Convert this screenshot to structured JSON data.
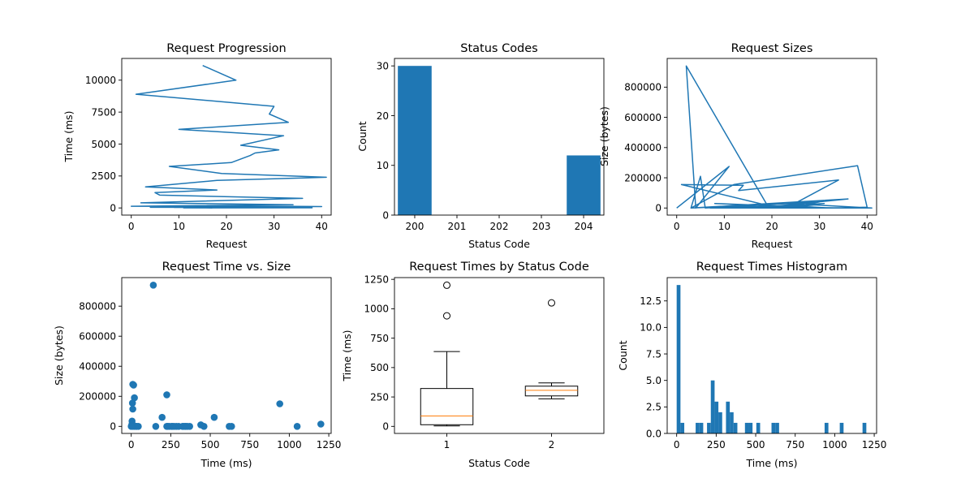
{
  "figure": {
    "accent_color": "#1f77b4",
    "median_color": "#ff7f0e"
  },
  "chart_data": [
    {
      "id": "progression",
      "type": "line",
      "title": "Request Progression",
      "xlabel": "Request",
      "ylabel": "Time (ms)",
      "xlim": [
        -2,
        42
      ],
      "ylim": [
        -560,
        11700
      ],
      "xticks": [
        0,
        10,
        20,
        30,
        40
      ],
      "yticks": [
        0,
        2500,
        5000,
        7500,
        10000
      ],
      "grid": false,
      "x": [
        15,
        22,
        1,
        30,
        29,
        33,
        10,
        32,
        23,
        31,
        26,
        25,
        21,
        8,
        19,
        41,
        18,
        3,
        18,
        5,
        6,
        36,
        2,
        34,
        0,
        34,
        40,
        16,
        37,
        12,
        28,
        4,
        20,
        35,
        9,
        31,
        14,
        24,
        27,
        38,
        11,
        17
      ],
      "y": [
        11150,
        10000,
        8900,
        7950,
        7350,
        6700,
        6150,
        5650,
        4900,
        4550,
        4300,
        4100,
        3550,
        3250,
        2700,
        2400,
        2150,
        1650,
        1400,
        1200,
        1000,
        750,
        400,
        250,
        130,
        120,
        110,
        90,
        80,
        70,
        60,
        50,
        45,
        40,
        35,
        30,
        25,
        20,
        15,
        10,
        5,
        0
      ]
    },
    {
      "id": "status_codes",
      "type": "bar",
      "title": "Status Codes",
      "xlabel": "Status Code",
      "ylabel": "Count",
      "categories": [
        "200",
        "204"
      ],
      "x": [
        200,
        204
      ],
      "values": [
        30,
        12
      ],
      "xlim": [
        199.52,
        204.48
      ],
      "ylim": [
        0,
        31.5
      ],
      "xticks": [
        200,
        201,
        202,
        203,
        204
      ],
      "xticklabels": [
        "200",
        "201",
        "202",
        "203",
        "204"
      ],
      "yticks": [
        0,
        10,
        20,
        30
      ],
      "grid": false
    },
    {
      "id": "request_sizes",
      "type": "line",
      "title": "Request Sizes",
      "xlabel": "Request",
      "ylabel": "Size (bytes)",
      "xlim": [
        -2,
        42
      ],
      "ylim": [
        -47000,
        990000
      ],
      "xticks": [
        0,
        10,
        20,
        30,
        40
      ],
      "yticks": [
        0,
        200000,
        400000,
        600000,
        800000
      ],
      "grid": false,
      "x": [
        0,
        11,
        4,
        2,
        19,
        3,
        5,
        6,
        30,
        23,
        34,
        13,
        14,
        1,
        20,
        36,
        3,
        12,
        38,
        40,
        33,
        8,
        26,
        7,
        41,
        29,
        22,
        16,
        31,
        21,
        25,
        18,
        27,
        24,
        32,
        28,
        17,
        35,
        15,
        10,
        9,
        37
      ],
      "y": [
        0,
        275000,
        0,
        940000,
        20000,
        0,
        210000,
        0,
        40000,
        0,
        185000,
        115000,
        150000,
        155000,
        10000,
        60000,
        0,
        155000,
        280000,
        5000,
        0,
        30000,
        5000,
        0,
        0,
        20000,
        0,
        5000,
        30000,
        0,
        10000,
        5000,
        0,
        15000,
        0,
        5000,
        0,
        0,
        10000,
        0,
        5000,
        0
      ]
    },
    {
      "id": "time_vs_size",
      "type": "scatter",
      "title": "Request Time vs. Size",
      "xlabel": "Time (ms)",
      "ylabel": "Size (bytes)",
      "xlim": [
        -60,
        1265
      ],
      "ylim": [
        -47000,
        990000
      ],
      "xticks": [
        0,
        250,
        500,
        750,
        1000,
        1250
      ],
      "yticks": [
        0,
        200000,
        400000,
        600000,
        800000
      ],
      "grid": false,
      "points": [
        [
          140,
          940000
        ],
        [
          10,
          280000
        ],
        [
          15,
          275000
        ],
        [
          20,
          190000
        ],
        [
          225,
          210000
        ],
        [
          8,
          155000
        ],
        [
          10,
          115000
        ],
        [
          940,
          150000
        ],
        [
          195,
          60000
        ],
        [
          525,
          60000
        ],
        [
          5,
          35000
        ],
        [
          5,
          15000
        ],
        [
          2,
          5000
        ],
        [
          10,
          0
        ],
        [
          20,
          0
        ],
        [
          30,
          0
        ],
        [
          45,
          0
        ],
        [
          155,
          0
        ],
        [
          225,
          0
        ],
        [
          240,
          0
        ],
        [
          255,
          0
        ],
        [
          270,
          0
        ],
        [
          285,
          0
        ],
        [
          300,
          0
        ],
        [
          325,
          0
        ],
        [
          340,
          0
        ],
        [
          355,
          0
        ],
        [
          370,
          0
        ],
        [
          440,
          10000
        ],
        [
          460,
          0
        ],
        [
          620,
          0
        ],
        [
          635,
          0
        ],
        [
          1050,
          0
        ],
        [
          1200,
          15000
        ],
        [
          12,
          8000
        ],
        [
          35,
          0
        ],
        [
          260,
          0
        ],
        [
          345,
          0
        ],
        [
          230,
          0
        ],
        [
          4,
          2000
        ],
        [
          0,
          0
        ],
        [
          330,
          0
        ]
      ]
    },
    {
      "id": "times_by_status",
      "type": "box",
      "title": "Request Times by Status Code",
      "xlabel": "Status Code",
      "ylabel": "Time (ms)",
      "xlim": [
        0.5,
        2.5
      ],
      "ylim": [
        -60,
        1265
      ],
      "xticks": [
        1,
        2
      ],
      "yticks": [
        0,
        250,
        500,
        750,
        1000,
        1250
      ],
      "grid": false,
      "boxes": [
        {
          "label": "1",
          "whisker_low": 4,
          "q1": 14,
          "median": 88,
          "q3": 322,
          "whisker_high": 636,
          "outliers": [
            940,
            1200
          ]
        },
        {
          "label": "2",
          "whisker_low": 234,
          "q1": 259,
          "median": 307,
          "q3": 342,
          "whisker_high": 370,
          "outliers": [
            1050
          ]
        }
      ]
    },
    {
      "id": "times_histogram",
      "type": "bar",
      "title": "Request Times Histogram",
      "xlabel": "Time (ms)",
      "ylabel": "Count",
      "xlim": [
        -60,
        1265
      ],
      "ylim": [
        0,
        14.7
      ],
      "xticks": [
        0,
        250,
        500,
        750,
        1000,
        1250
      ],
      "yticks": [
        0,
        2.5,
        5.0,
        7.5,
        10.0,
        12.5
      ],
      "yticklabels": [
        "0.0",
        "2.5",
        "5.0",
        "7.5",
        "10.0",
        "12.5"
      ],
      "grid": false,
      "bin_start": 0,
      "bin_width": 24,
      "counts": [
        14,
        1,
        0,
        0,
        0,
        1,
        1,
        0,
        1,
        5,
        3,
        2,
        0,
        3,
        2,
        1,
        0,
        0,
        1,
        1,
        0,
        1,
        0,
        0,
        0,
        1,
        1,
        0,
        0,
        0,
        0,
        0,
        0,
        0,
        0,
        0,
        0,
        0,
        0,
        1,
        0,
        0,
        0,
        1,
        0,
        0,
        0,
        0,
        0,
        1
      ]
    }
  ]
}
